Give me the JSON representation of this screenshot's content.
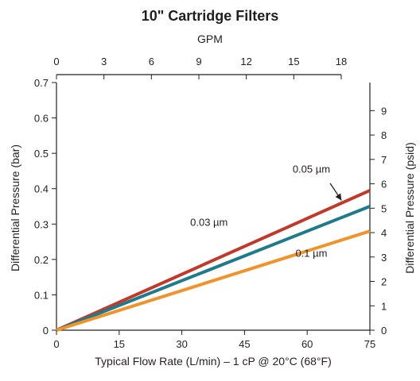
{
  "chart_data": {
    "type": "line",
    "title": "10\" Cartridge Filters",
    "xlabel": "Typical Flow Rate (L/min) – 1 cP @ 20°C (68°F)",
    "ylabel": "Differential Pressure (bar)",
    "x2label": "GPM",
    "y2label": "Differential Pressure (psid)",
    "xlim": [
      0,
      75
    ],
    "ylim": [
      0,
      0.7
    ],
    "x2lim": [
      0,
      19.81
    ],
    "y2lim": [
      0,
      10.15
    ],
    "x_ticks": [
      0,
      15,
      30,
      45,
      60,
      75
    ],
    "y_ticks": [
      0,
      0.1,
      0.2,
      0.3,
      0.4,
      0.5,
      0.6,
      0.7
    ],
    "x2_ticks": [
      0,
      3,
      6,
      9,
      12,
      15,
      18
    ],
    "y2_ticks": [
      0,
      1,
      2,
      3,
      4,
      5,
      6,
      7,
      8,
      9
    ],
    "x_tick_labels": [
      "0",
      "15",
      "30",
      "45",
      "60",
      "75"
    ],
    "y_tick_labels": [
      "0",
      "0.1",
      "0.2",
      "0.3",
      "0.4",
      "0.5",
      "0.6",
      "0.7"
    ],
    "x2_tick_labels": [
      "0",
      "3",
      "6",
      "9",
      "12",
      "15",
      "18"
    ],
    "y2_tick_labels": [
      "0",
      "1",
      "2",
      "3",
      "4",
      "5",
      "6",
      "7",
      "8",
      "9"
    ],
    "grid": false,
    "series": [
      {
        "name": "0.05 µm",
        "color": "#c0392b",
        "x": [
          0,
          75
        ],
        "y": [
          0,
          0.395
        ]
      },
      {
        "name": "0.03 µm",
        "color": "#1f7a8c",
        "x": [
          0,
          75
        ],
        "y": [
          0,
          0.35
        ]
      },
      {
        "name": "0.1 µm",
        "color": "#f0932b",
        "x": [
          0,
          75
        ],
        "y": [
          0,
          0.28
        ]
      }
    ],
    "annotations": [
      {
        "text": "0.05 µm",
        "x": 61,
        "y": 0.445
      },
      {
        "text": "0.03 µm",
        "x": 36.5,
        "y": 0.295
      },
      {
        "text": "0.1 µm",
        "x": 61,
        "y": 0.207
      }
    ],
    "arrow": {
      "from": [
        65.5,
        0.415
      ],
      "to": [
        68.2,
        0.367
      ]
    }
  }
}
